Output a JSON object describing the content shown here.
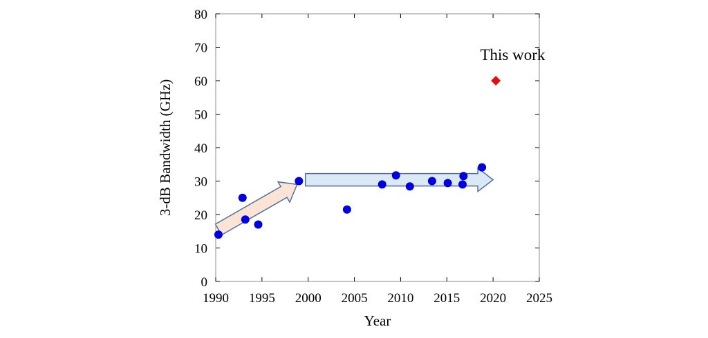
{
  "chart_data": {
    "type": "scatter",
    "title": "",
    "xlabel": "Year",
    "ylabel": "3-dB Bandwidth  (GHz)",
    "xlim": [
      1990,
      2025
    ],
    "ylim": [
      0,
      80
    ],
    "xticks": [
      1990,
      1995,
      2000,
      2005,
      2010,
      2015,
      2020,
      2025
    ],
    "yticks": [
      0,
      10,
      20,
      30,
      40,
      50,
      60,
      70,
      80
    ],
    "grid": false,
    "series": [
      {
        "marker": "circle",
        "color": "#0000dd",
        "points": [
          {
            "x": 1990.3,
            "y": 14
          },
          {
            "x": 1992.9,
            "y": 25
          },
          {
            "x": 1993.2,
            "y": 18.5
          },
          {
            "x": 1994.6,
            "y": 17
          },
          {
            "x": 1999.0,
            "y": 30
          },
          {
            "x": 2004.2,
            "y": 21.5
          },
          {
            "x": 2008.0,
            "y": 29
          },
          {
            "x": 2009.5,
            "y": 31.7
          },
          {
            "x": 2011.0,
            "y": 28.4
          },
          {
            "x": 2013.4,
            "y": 30
          },
          {
            "x": 2015.1,
            "y": 29.4
          },
          {
            "x": 2016.7,
            "y": 29
          },
          {
            "x": 2016.8,
            "y": 31.5
          },
          {
            "x": 2018.8,
            "y": 34.1
          }
        ]
      },
      {
        "marker": "diamond",
        "color": "#e01010",
        "points": [
          {
            "x": 2020.3,
            "y": 60
          }
        ]
      }
    ],
    "annotations": [
      {
        "text": "This work",
        "x": 2019.5,
        "y": 67.8
      }
    ],
    "trend_arrows": [
      {
        "from": [
          1990.3,
          15.5
        ],
        "to": [
          1998.8,
          29.0
        ],
        "fill": "#fbe3d6",
        "stroke": "#4f6f99"
      },
      {
        "from": [
          1999.7,
          30.4
        ],
        "to": [
          2020.0,
          30.4
        ],
        "fill": "#dbe8f6",
        "stroke": "#4f6f99"
      }
    ]
  }
}
